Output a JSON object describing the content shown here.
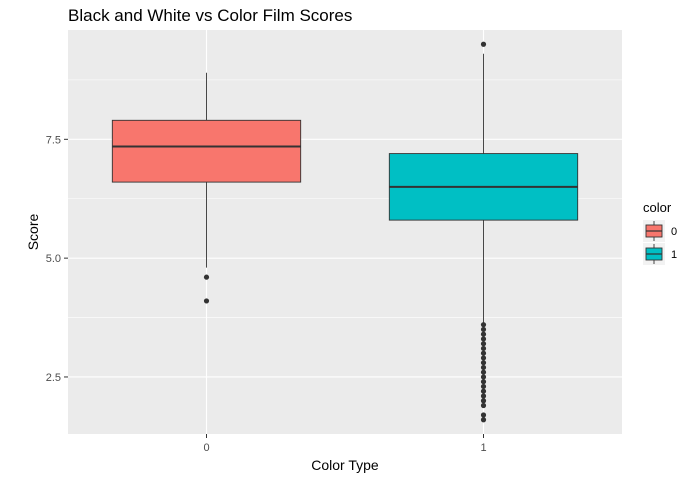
{
  "chart_data": {
    "type": "boxplot",
    "title": "Black and White vs Color Film Scores",
    "xlabel": "Color Type",
    "ylabel": "Score",
    "categories": [
      "0",
      "1"
    ],
    "ylim": [
      1.3,
      9.8
    ],
    "yticks": [
      {
        "value": 2.5,
        "label": "2.5"
      },
      {
        "value": 5.0,
        "label": "5.0"
      },
      {
        "value": 7.5,
        "label": "7.5"
      }
    ],
    "grid": true,
    "legend": {
      "title": "color",
      "placement": "right",
      "entries": [
        {
          "label": "0",
          "color": "#F8766D"
        },
        {
          "label": "1",
          "color": "#00BFC4"
        }
      ]
    },
    "boxes": [
      {
        "category": "0",
        "whisker_low": 4.8,
        "q1": 6.6,
        "median": 7.35,
        "q3": 7.9,
        "whisker_high": 8.9,
        "outliers": [
          4.6,
          4.1
        ],
        "color": "#F8766D"
      },
      {
        "category": "1",
        "whisker_low": 3.6,
        "q1": 5.8,
        "median": 6.5,
        "q3": 7.2,
        "whisker_high": 9.3,
        "outliers": [
          9.5,
          3.6,
          3.5,
          3.4,
          3.3,
          3.2,
          3.1,
          3.0,
          2.9,
          2.8,
          2.7,
          2.6,
          2.5,
          2.4,
          2.3,
          2.2,
          2.1,
          2.0,
          1.9,
          1.7,
          1.6
        ],
        "color": "#00BFC4"
      }
    ]
  },
  "colors": {
    "panel_bg": "#EBEBEB",
    "grid_major": "#FFFFFF",
    "box_stroke": "#333333",
    "outlier": "#333333"
  }
}
